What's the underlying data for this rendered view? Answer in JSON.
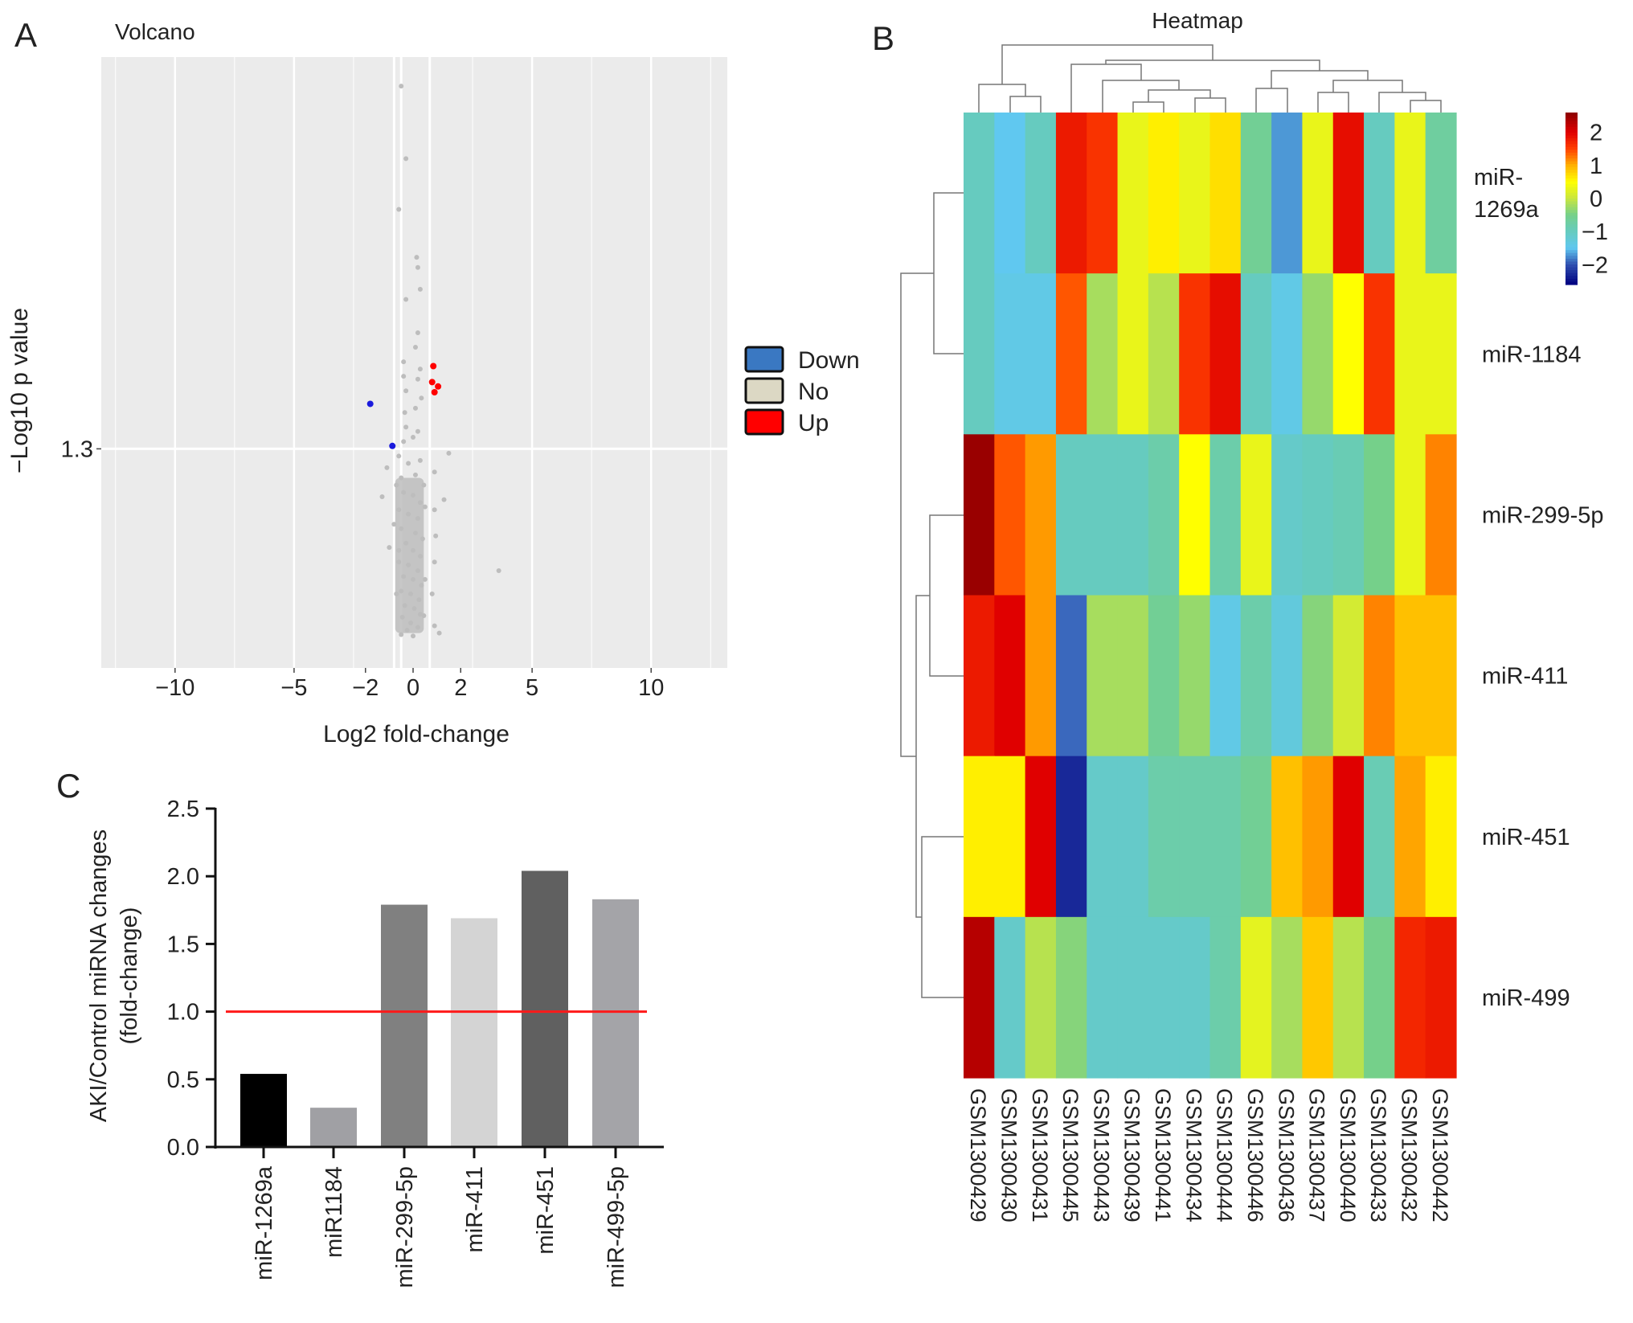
{
  "colors": {
    "up": "#ff0000",
    "down": "#1a1adc",
    "no": "#bdbdbd",
    "panel_bg": "#ebebeb",
    "ref_line": "#ff1a1a"
  },
  "chart_data": [
    {
      "panel": "A",
      "type": "scatter",
      "title": "Volcano",
      "xlabel": "Log2 fold-change",
      "ylabel": "−Log10 p value",
      "xlim": [
        -13.1,
        13.2
      ],
      "ylim": [
        -0.21,
        4.0
      ],
      "x_ticks": [
        {
          "v": -10,
          "label": "−10"
        },
        {
          "v": -5,
          "label": "−5"
        },
        {
          "v": -2,
          "label": "−2"
        },
        {
          "v": 0,
          "label": "0"
        },
        {
          "v": 2,
          "label": "2"
        },
        {
          "v": 5,
          "label": "5"
        },
        {
          "v": 10,
          "label": "10"
        }
      ],
      "y_ticks": [
        {
          "v": 1.3,
          "label": "1.3"
        }
      ],
      "legend": {
        "placement": "right",
        "entries": [
          {
            "label": "Down",
            "color": "#3a78c2"
          },
          {
            "label": "No",
            "color": "#dcd8c4"
          },
          {
            "label": "Up",
            "color": "#ff0000"
          }
        ]
      },
      "series": [
        {
          "name": "Up",
          "points": [
            [
              0.85,
              1.87
            ],
            [
              0.8,
              1.76
            ],
            [
              1.05,
              1.73
            ],
            [
              0.9,
              1.69
            ]
          ]
        },
        {
          "name": "Down",
          "points": [
            [
              -1.8,
              1.61
            ],
            [
              -0.87,
              1.32
            ]
          ]
        },
        {
          "name": "No",
          "points": [
            [
              -0.5,
              3.8
            ],
            [
              -0.3,
              3.3
            ],
            [
              -0.6,
              2.95
            ],
            [
              0.15,
              2.62
            ],
            [
              0.2,
              2.55
            ],
            [
              0.3,
              2.4
            ],
            [
              -0.3,
              2.33
            ],
            [
              0.2,
              2.1
            ],
            [
              0.1,
              2.0
            ],
            [
              -0.4,
              1.9
            ],
            [
              0.3,
              1.85
            ],
            [
              -0.4,
              1.8
            ],
            [
              0.2,
              1.78
            ],
            [
              -0.3,
              1.7
            ],
            [
              0.35,
              1.65
            ],
            [
              -0.35,
              1.55
            ],
            [
              0.1,
              1.58
            ],
            [
              -0.3,
              1.45
            ],
            [
              0.2,
              1.42
            ],
            [
              -0.4,
              1.35
            ],
            [
              0.0,
              1.38
            ],
            [
              1.5,
              1.27
            ],
            [
              -1.1,
              1.17
            ],
            [
              0.9,
              1.14
            ],
            [
              -1.3,
              0.97
            ],
            [
              1.3,
              0.95
            ],
            [
              0.9,
              0.88
            ],
            [
              -0.8,
              0.78
            ],
            [
              0.95,
              0.7
            ],
            [
              -1.0,
              0.62
            ],
            [
              0.9,
              0.52
            ],
            [
              3.6,
              0.46
            ],
            [
              0.8,
              0.3
            ],
            [
              0.9,
              0.08
            ],
            [
              -0.5,
              0.02
            ],
            [
              1.1,
              0.03
            ],
            [
              -0.6,
              1.25
            ],
            [
              -0.2,
              1.2
            ],
            [
              0.3,
              1.22
            ],
            [
              -0.5,
              1.1
            ],
            [
              0.1,
              1.12
            ],
            [
              0.45,
              1.05
            ],
            [
              -0.4,
              1.0
            ],
            [
              0.0,
              0.98
            ],
            [
              0.3,
              0.93
            ],
            [
              -0.6,
              0.88
            ],
            [
              -0.2,
              0.85
            ],
            [
              0.2,
              0.82
            ],
            [
              -0.5,
              0.75
            ],
            [
              0.1,
              0.72
            ],
            [
              0.4,
              0.68
            ],
            [
              -0.3,
              0.65
            ],
            [
              0.0,
              0.6
            ],
            [
              0.3,
              0.56
            ],
            [
              -0.6,
              0.52
            ],
            [
              -0.2,
              0.5
            ],
            [
              0.2,
              0.46
            ],
            [
              -0.4,
              0.42
            ],
            [
              0.0,
              0.4
            ],
            [
              0.35,
              0.36
            ],
            [
              -0.5,
              0.32
            ],
            [
              -0.1,
              0.3
            ],
            [
              0.25,
              0.26
            ],
            [
              -0.35,
              0.22
            ],
            [
              0.05,
              0.2
            ],
            [
              0.3,
              0.16
            ],
            [
              -0.45,
              0.14
            ],
            [
              -0.1,
              0.1
            ],
            [
              0.2,
              0.07
            ],
            [
              -0.25,
              0.05
            ],
            [
              0.0,
              0.01
            ],
            [
              -0.6,
              0.6
            ],
            [
              0.5,
              0.9
            ],
            [
              -0.7,
              1.05
            ],
            [
              0.5,
              0.4
            ],
            [
              -0.7,
              0.3
            ],
            [
              0.45,
              0.15
            ]
          ]
        }
      ]
    },
    {
      "panel": "B",
      "type": "heatmap",
      "title": "Heatmap",
      "rows": [
        "miR-1269a",
        "miR-1184",
        "miR-299-5p",
        "miR-411",
        "miR-451",
        "miR-499"
      ],
      "row_label_lines": [
        [
          "miR-",
          "1269a"
        ],
        [
          "miR-1184"
        ],
        [
          "miR-299-5p"
        ],
        [
          "miR-411"
        ],
        [
          "miR-451"
        ],
        [
          "miR-499"
        ]
      ],
      "columns": [
        "GSM1300429",
        "GSM1300430",
        "GSM1300431",
        "GSM1300445",
        "GSM1300443",
        "GSM1300439",
        "GSM1300441",
        "GSM1300434",
        "GSM1300444",
        "GSM1300446",
        "GSM1300436",
        "GSM1300437",
        "GSM1300440",
        "GSM1300433",
        "GSM1300432",
        "GSM1300442"
      ],
      "values": [
        [
          -1.0,
          -1.5,
          -1.0,
          1.8,
          1.6,
          0.3,
          0.6,
          0.3,
          0.7,
          -0.6,
          -1.7,
          0.3,
          1.9,
          -1.0,
          0.3,
          -0.7
        ],
        [
          -1.0,
          -1.4,
          -1.4,
          1.4,
          -0.2,
          0.3,
          -0.1,
          1.6,
          1.9,
          -1.0,
          -1.4,
          -0.3,
          0.5,
          1.6,
          0.3,
          0.3
        ],
        [
          2.5,
          1.4,
          1.1,
          -1.0,
          -1.0,
          -1.0,
          -0.8,
          0.5,
          -0.8,
          0.3,
          -1.1,
          -1.0,
          -0.9,
          -0.5,
          0.3,
          1.2
        ],
        [
          1.8,
          2.0,
          1.1,
          -1.9,
          -0.2,
          -0.2,
          -0.6,
          -0.3,
          -1.4,
          -0.8,
          -1.3,
          -0.4,
          0.1,
          1.2,
          0.9,
          0.9
        ],
        [
          0.6,
          0.6,
          2.0,
          -2.3,
          -1.1,
          -1.1,
          -0.8,
          -0.8,
          -0.8,
          -0.6,
          0.9,
          1.1,
          2.0,
          -0.9,
          1.05,
          0.6
        ],
        [
          2.3,
          -1.1,
          -0.1,
          -0.4,
          -1.1,
          -1.1,
          -1.1,
          -1.1,
          -0.8,
          0.25,
          -0.2,
          0.85,
          -0.1,
          -0.5,
          1.7,
          1.8
        ]
      ],
      "colorbar": {
        "range": [
          -2.6,
          2.6
        ],
        "ticks": [
          {
            "v": 2,
            "label": "2"
          },
          {
            "v": 1,
            "label": "1"
          },
          {
            "v": 0,
            "label": "0"
          },
          {
            "v": -1,
            "label": "−1"
          },
          {
            "v": -2,
            "label": "−2"
          }
        ]
      }
    },
    {
      "panel": "C",
      "type": "bar",
      "categories": [
        "miR-1269a",
        "miR1184",
        "miR-299-5p",
        "miR-411",
        "miR-451",
        "miR-499-5p"
      ],
      "values": [
        0.54,
        0.29,
        1.79,
        1.69,
        2.04,
        1.83
      ],
      "bar_colors": [
        "#000000",
        "#a0a0a4",
        "#808080",
        "#d4d4d4",
        "#606060",
        "#a4a4a8"
      ],
      "ylabel_lines": [
        "AKI/Control miRNA changes",
        "(fold-change)"
      ],
      "xlabel": "",
      "ylim": [
        0,
        2.5
      ],
      "y_ticks": [
        "0.0",
        "0.5",
        "1.0",
        "1.5",
        "2.0",
        "2.5"
      ],
      "reference_line": 1.0
    }
  ],
  "panel_labels": {
    "a": "A",
    "b": "B",
    "c": "C"
  }
}
